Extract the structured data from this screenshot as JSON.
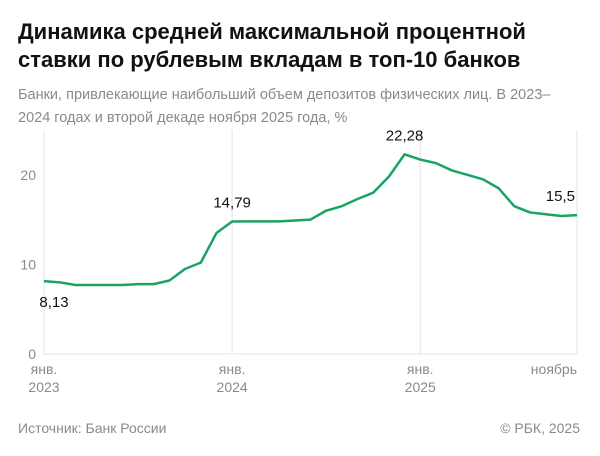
{
  "chart_data": {
    "type": "line",
    "title": "Динамика средней максимальной процентной ставки по рублевым вкладам в топ-10 банков",
    "subtitle": "Банки, привлекающие наибольший объем депозитов физических лиц. В 2023–2024 годах и второй декаде ноября 2025 года, %",
    "source": "Источник: Банк России",
    "credit": "© РБК, 2025",
    "categories": [
      "2023-01",
      "2023-02",
      "2023-03",
      "2023-04",
      "2023-05",
      "2023-06",
      "2023-07",
      "2023-08",
      "2023-09",
      "2023-10",
      "2023-11",
      "2023-12",
      "2024-01",
      "2024-02",
      "2024-03",
      "2024-04",
      "2024-05",
      "2024-06",
      "2024-07",
      "2024-08",
      "2024-09",
      "2024-10",
      "2024-11",
      "2024-12",
      "2025-01",
      "2025-02",
      "2025-03",
      "2025-04",
      "2025-05",
      "2025-06",
      "2025-07",
      "2025-08",
      "2025-09",
      "2025-10",
      "2025-11"
    ],
    "series": [
      {
        "name": "Средняя максимальная ставка",
        "color": "#19a463",
        "values": [
          8.13,
          8.0,
          7.7,
          7.7,
          7.7,
          7.7,
          7.8,
          7.8,
          8.2,
          9.5,
          10.2,
          13.5,
          14.79,
          14.8,
          14.8,
          14.8,
          14.9,
          15.0,
          16.0,
          16.5,
          17.3,
          18.0,
          19.8,
          22.28,
          21.7,
          21.3,
          20.5,
          20.0,
          19.5,
          18.5,
          16.5,
          15.8,
          15.6,
          15.4,
          15.5
        ],
        "value_labels": [
          "8,13",
          null,
          null,
          null,
          null,
          null,
          null,
          null,
          null,
          null,
          null,
          null,
          "14,79",
          null,
          null,
          null,
          null,
          null,
          null,
          null,
          null,
          null,
          null,
          "22,28",
          null,
          null,
          null,
          null,
          null,
          null,
          null,
          null,
          null,
          null,
          "15,5"
        ]
      }
    ],
    "ylim": [
      0,
      25
    ],
    "yticks": [
      0,
      10,
      20
    ],
    "xticks": [
      {
        "value": "2023-01",
        "label": "янв. 2023"
      },
      {
        "value": "2024-01",
        "label": "янв. 2024"
      },
      {
        "value": "2025-01",
        "label": "янв. 2025"
      },
      {
        "value": "2025-11",
        "label": "ноябрь"
      }
    ],
    "grid": "x"
  }
}
